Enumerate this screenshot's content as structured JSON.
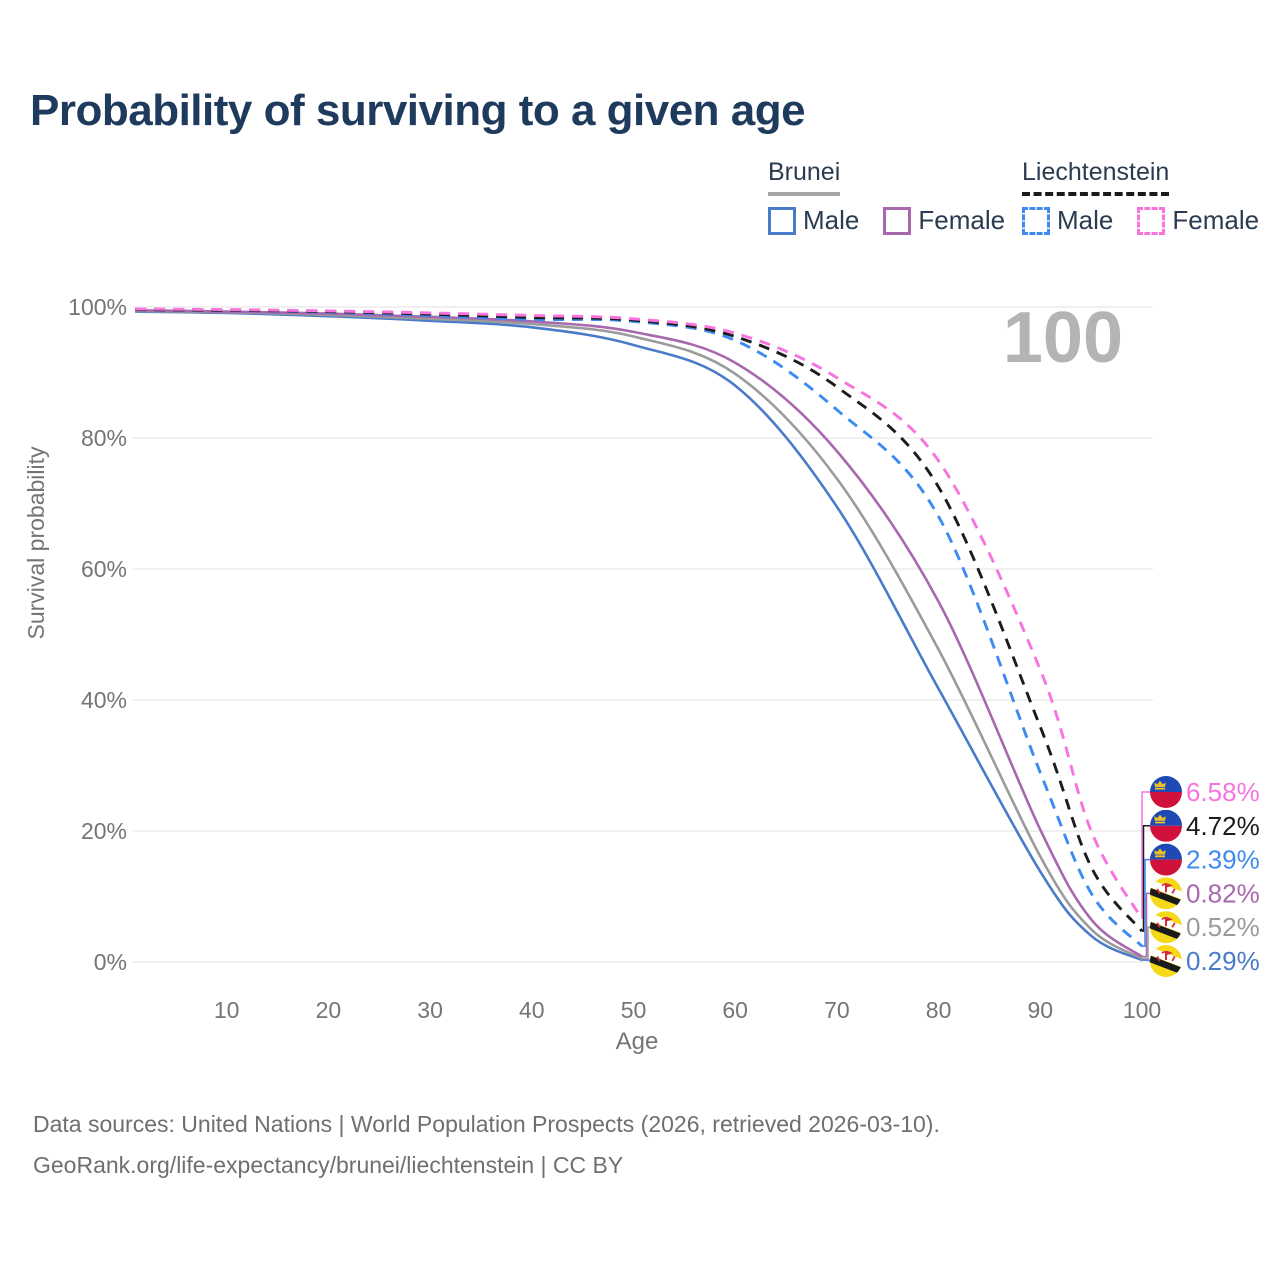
{
  "title": "Probability of surviving to a given age",
  "legend": {
    "groups": [
      {
        "name": "Brunei",
        "line_style": "solid",
        "underline_color": "#a6a6a6",
        "items": [
          {
            "label": "Male",
            "color": "#4a7bc9"
          },
          {
            "label": "Female",
            "color": "#a868ae"
          }
        ]
      },
      {
        "name": "Liechtenstein",
        "line_style": "dashed",
        "underline_color": "#1a1a1a",
        "items": [
          {
            "label": "Male",
            "color": "#3d8bf2"
          },
          {
            "label": "Female",
            "color": "#f973de"
          }
        ]
      }
    ]
  },
  "age_cursor_label": "100",
  "chart_data": {
    "type": "line",
    "xlabel": "Age",
    "ylabel": "Survival probability",
    "xlim": [
      0,
      100
    ],
    "ylim": [
      0,
      100
    ],
    "grid": true,
    "grid_color": "#e8e8e8",
    "axis_text_color": "#757575",
    "age_cursor_color": "#b4b4b4",
    "x_ticks": [
      10,
      20,
      30,
      40,
      50,
      60,
      70,
      80,
      90,
      100
    ],
    "y_ticks": [
      "0%",
      "20%",
      "40%",
      "60%",
      "80%",
      "100%"
    ],
    "x": [
      1,
      10,
      20,
      30,
      40,
      50,
      60,
      70,
      80,
      90,
      95,
      100
    ],
    "series": [
      {
        "id": "brunei-male",
        "name": "Brunei — Male",
        "country": "Brunei",
        "sex": "Male",
        "color": "#4a7bc9",
        "dash": false,
        "flag": "brunei",
        "end_label": "0.29%",
        "values": [
          99.3,
          99.1,
          98.6,
          97.9,
          96.9,
          94.2,
          88.0,
          69.5,
          41.7,
          13.8,
          4.0,
          0.29
        ]
      },
      {
        "id": "brunei-both",
        "name": "Brunei — Both sexes",
        "country": "Brunei",
        "sex": "Both",
        "color": "#9b9b9b",
        "dash": false,
        "flag": "brunei",
        "end_label": "0.52%",
        "values": [
          99.4,
          99.2,
          98.8,
          98.2,
          97.4,
          95.5,
          89.8,
          73.8,
          47.7,
          16.1,
          5.0,
          0.52
        ]
      },
      {
        "id": "brunei-female",
        "name": "Brunei — Female",
        "country": "Brunei",
        "sex": "Female",
        "color": "#a868ae",
        "dash": false,
        "flag": "brunei",
        "end_label": "0.82%",
        "values": [
          99.5,
          99.3,
          99.0,
          98.5,
          97.8,
          96.2,
          91.5,
          78.0,
          55.0,
          20.2,
          6.5,
          0.82
        ]
      },
      {
        "id": "liechtenstein-male",
        "name": "Liechtenstein — Male",
        "country": "Liechtenstein",
        "sex": "Male",
        "color": "#3d8bf2",
        "dash": true,
        "flag": "liechtenstein",
        "end_label": "2.39%",
        "values": [
          99.6,
          99.5,
          99.2,
          98.7,
          98.1,
          97.8,
          94.9,
          84.3,
          68.0,
          28.9,
          10.5,
          2.39
        ]
      },
      {
        "id": "liechtenstein-both",
        "name": "Liechtenstein — Both sexes",
        "country": "Liechtenstein",
        "sex": "Both",
        "color": "#1c1c1c",
        "dash": true,
        "flag": "liechtenstein",
        "end_label": "4.72%",
        "values": [
          99.6,
          99.5,
          99.3,
          98.9,
          98.4,
          98.0,
          95.5,
          87.8,
          72.5,
          35.9,
          14.5,
          4.72
        ]
      },
      {
        "id": "liechtenstein-female",
        "name": "Liechtenstein — Female",
        "country": "Liechtenstein",
        "sex": "Female",
        "color": "#f973de",
        "dash": true,
        "flag": "liechtenstein",
        "end_label": "6.58%",
        "values": [
          99.7,
          99.6,
          99.4,
          99.1,
          98.7,
          98.2,
          96.0,
          89.2,
          76.5,
          44.6,
          20.0,
          6.58
        ]
      }
    ]
  },
  "footer": {
    "line1": "Data sources: United Nations | World Population Prospects (2026, retrieved 2026-03-10).",
    "line2": "GeoRank.org/life-expectancy/brunei/liechtenstein | CC BY"
  }
}
